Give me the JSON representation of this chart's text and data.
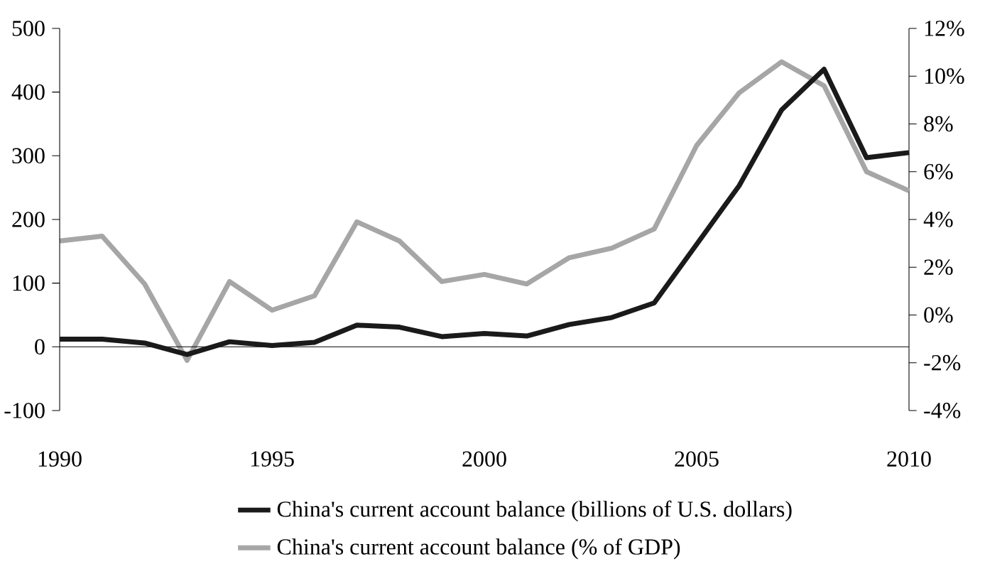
{
  "chart_data": {
    "type": "line",
    "x": [
      1990,
      1991,
      1992,
      1993,
      1994,
      1995,
      1996,
      1997,
      1998,
      1999,
      2000,
      2001,
      2002,
      2003,
      2004,
      2005,
      2006,
      2007,
      2008,
      2009,
      2010
    ],
    "series": [
      {
        "name": "China's current account balance (billions of U.S. dollars)",
        "color": "#1a1a1a",
        "values": [
          12,
          12,
          6,
          -12,
          8,
          2,
          7,
          34,
          31,
          16,
          21,
          17,
          35,
          46,
          69,
          161,
          253,
          372,
          436,
          297,
          305
        ]
      },
      {
        "name": "China's current account balance (% of GDP)",
        "color": "#a6a6a6",
        "axis": "y2",
        "values": [
          3.1,
          3.3,
          1.3,
          -1.9,
          1.4,
          0.2,
          0.8,
          3.9,
          3.1,
          1.4,
          1.7,
          1.3,
          2.4,
          2.8,
          3.6,
          7.1,
          9.3,
          10.6,
          9.6,
          6.0,
          5.2
        ]
      }
    ],
    "xlim": [
      1990,
      2010
    ],
    "xticks": [
      1990,
      1995,
      2000,
      2005,
      2010
    ],
    "ylim": [
      -100,
      500
    ],
    "yticks": [
      -100,
      0,
      100,
      200,
      300,
      400,
      500
    ],
    "y2lim": [
      -4,
      12
    ],
    "y2ticks": [
      {
        "value": -4,
        "label": "-4%"
      },
      {
        "value": -2,
        "label": "-2%"
      },
      {
        "value": 0,
        "label": "0%"
      },
      {
        "value": 2,
        "label": "2%"
      },
      {
        "value": 4,
        "label": "4%"
      },
      {
        "value": 6,
        "label": "6%"
      },
      {
        "value": 8,
        "label": "8%"
      },
      {
        "value": 10,
        "label": "10%"
      },
      {
        "value": 12,
        "label": "12%"
      }
    ],
    "ref_lines": [
      {
        "axis": "y",
        "value": 0,
        "color": "#000000"
      }
    ],
    "grid": false,
    "legend": "bottom",
    "marker": "none",
    "line_style": "solid"
  }
}
